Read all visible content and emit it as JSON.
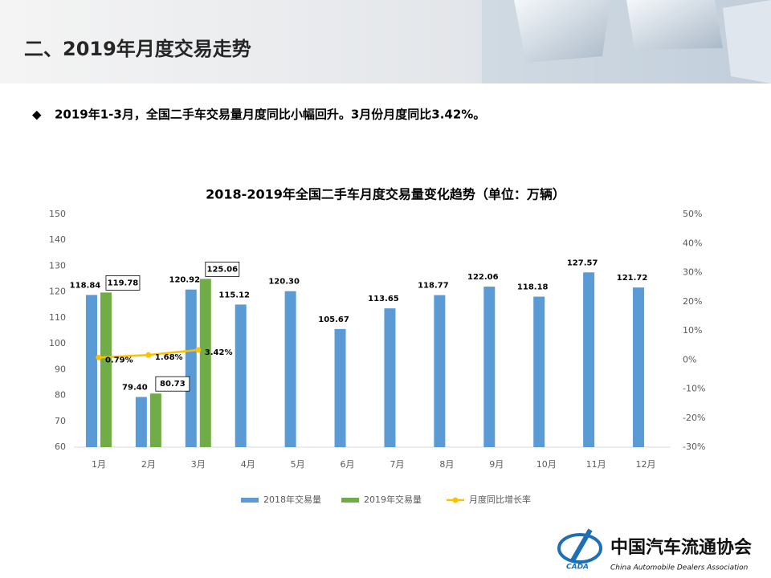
{
  "header": {
    "title": "二、2019年月度交易走势"
  },
  "bullet": "2019年1-3月，全国二手车交易量月度同比小幅回升。3月份月度同比3.42%。",
  "logo": {
    "name": "中国汽车流通协会",
    "english": "China Automobile Dealers Association",
    "abbr": "CADA"
  },
  "chart_data": {
    "type": "bar",
    "title": "2018-2019年全国二手车月度交易量变化趋势（单位：万辆）",
    "categories": [
      "1月",
      "2月",
      "3月",
      "4月",
      "5月",
      "6月",
      "7月",
      "8月",
      "9月",
      "10月",
      "11月",
      "12月"
    ],
    "series": [
      {
        "name": "2018年交易量",
        "color": "#5b9bd5",
        "type": "bar",
        "values": [
          118.84,
          79.4,
          120.92,
          115.12,
          120.3,
          105.67,
          113.65,
          118.77,
          122.06,
          118.18,
          127.57,
          121.72
        ],
        "value_labels": [
          "118.84",
          "79.40",
          "120.92",
          "115.12",
          "120.30",
          "105.67",
          "113.65",
          "118.77",
          "122.06",
          "118.18",
          "127.57",
          "121.72"
        ]
      },
      {
        "name": "2019年交易量",
        "color": "#70ad47",
        "type": "bar",
        "values": [
          119.78,
          80.73,
          125.06,
          null,
          null,
          null,
          null,
          null,
          null,
          null,
          null,
          null
        ],
        "value_labels": [
          "119.78",
          "80.73",
          "125.06",
          null,
          null,
          null,
          null,
          null,
          null,
          null,
          null,
          null
        ]
      },
      {
        "name": "月度同比增长率",
        "color": "#ffc000",
        "type": "line",
        "axis": "y2",
        "values": [
          0.79,
          1.68,
          3.42,
          null,
          null,
          null,
          null,
          null,
          null,
          null,
          null,
          null
        ],
        "value_labels": [
          "0.79%",
          "1.68%",
          "3.42%",
          null,
          null,
          null,
          null,
          null,
          null,
          null,
          null,
          null
        ]
      }
    ],
    "ylim": [
      60,
      150
    ],
    "yticks": [
      60,
      70,
      80,
      90,
      100,
      110,
      120,
      130,
      140,
      150
    ],
    "y2lim": [
      -30,
      50
    ],
    "y2ticks": [
      {
        "value": -30,
        "label": "-30%"
      },
      {
        "value": -20,
        "label": "-20%"
      },
      {
        "value": -10,
        "label": "-10%"
      },
      {
        "value": 0,
        "label": "0%"
      },
      {
        "value": 10,
        "label": "10%"
      },
      {
        "value": 20,
        "label": "20%"
      },
      {
        "value": 30,
        "label": "30%"
      },
      {
        "value": 40,
        "label": "40%"
      },
      {
        "value": 50,
        "label": "50%"
      }
    ],
    "legend": "bottom"
  }
}
